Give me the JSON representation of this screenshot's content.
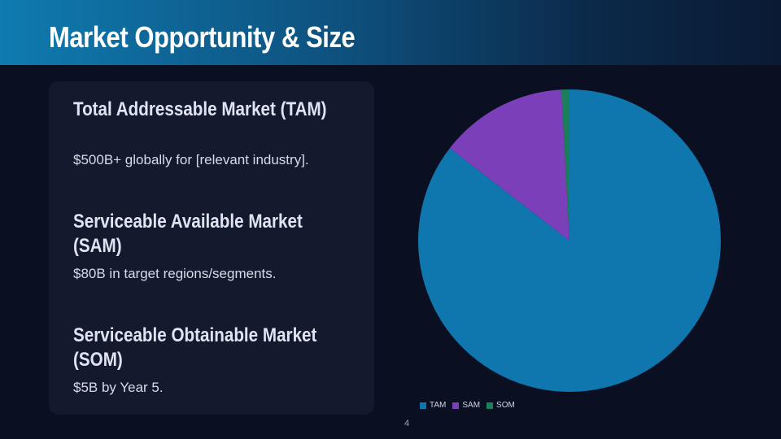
{
  "slide": {
    "title": "Market Opportunity & Size",
    "page_number": "4"
  },
  "card": {
    "items": [
      {
        "heading": "Total Addressable Market (TAM)",
        "text": "$500B+ globally for [relevant industry]."
      },
      {
        "heading": "Serviceable Available Market (SAM)",
        "text": "$80B in target regions/segments."
      },
      {
        "heading": "Serviceable Obtainable Market (SOM)",
        "text": "$5B by Year 5."
      }
    ]
  },
  "colors": {
    "header_start": "#0f7bb0",
    "header_end": "#0a1a33",
    "background": "#0b0f22",
    "card": "#141a2e",
    "tam": "#0f77ad",
    "sam": "#7b3fb9",
    "som": "#1a7f5a"
  },
  "chart_data": {
    "type": "pie",
    "categories": [
      "TAM",
      "SAM",
      "SOM"
    ],
    "values": [
      500,
      80,
      5
    ],
    "colors": [
      "#0f77ad",
      "#7b3fb9",
      "#1a7f5a"
    ],
    "legend": "bottom",
    "title": ""
  }
}
